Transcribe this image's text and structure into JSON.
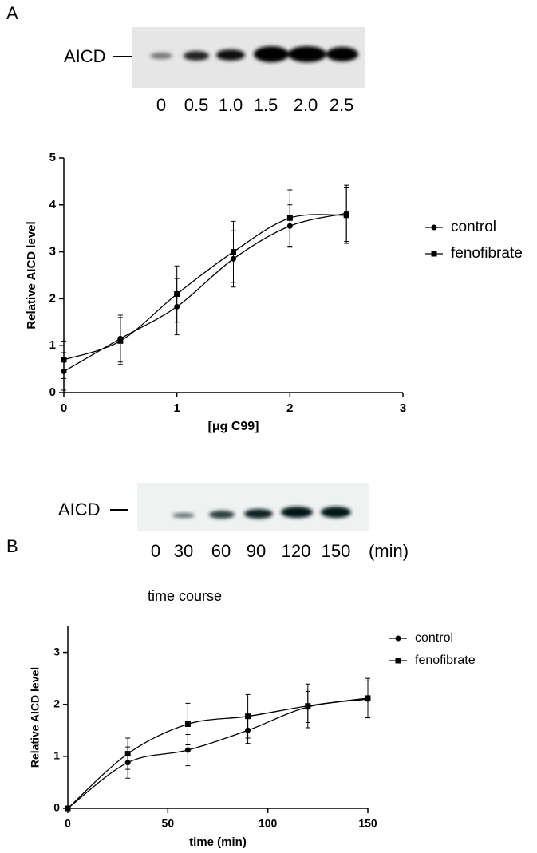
{
  "panel_a": {
    "label": "A",
    "blot_label": "AICD",
    "lanes": [
      "0",
      "0.5",
      "1.0",
      "1.5",
      "2.0",
      "2.5"
    ]
  },
  "panel_b": {
    "label": "B",
    "blot_label": "AICD",
    "lanes": [
      "0",
      "30",
      "60",
      "90",
      "120",
      "150"
    ],
    "unit": "(min)"
  },
  "chart_data": [
    {
      "type": "line",
      "x_label": "[μg C99]",
      "y_label": "Relative AICD level",
      "x": [
        0,
        0.5,
        1,
        1.5,
        2,
        2.5
      ],
      "xlim": [
        0,
        3
      ],
      "xticks": [
        0,
        1,
        2,
        3
      ],
      "ylim": [
        0,
        5
      ],
      "yticks": [
        0,
        1,
        2,
        3,
        4,
        5
      ],
      "legend": "right",
      "series": [
        {
          "name": "control",
          "color": "#000000",
          "marker": "circle",
          "values": [
            0.45,
            1.15,
            1.83,
            2.85,
            3.55,
            3.82
          ],
          "errors": [
            0.4,
            0.5,
            0.6,
            0.6,
            0.45,
            0.6
          ]
        },
        {
          "name": "fenofibrate",
          "color": "#000000",
          "marker": "square",
          "values": [
            0.7,
            1.1,
            2.1,
            3.0,
            3.72,
            3.78
          ],
          "errors": [
            0.4,
            0.5,
            0.6,
            0.65,
            0.6,
            0.6
          ]
        }
      ]
    },
    {
      "type": "line",
      "title": "time course",
      "x_label": "time (min)",
      "y_label": "Relative AICD level",
      "x": [
        0,
        30,
        60,
        90,
        120,
        150
      ],
      "xlim": [
        0,
        150
      ],
      "xticks": [
        0,
        50,
        100,
        150
      ],
      "ylim": [
        0,
        3.5
      ],
      "yticks": [
        0,
        1,
        2,
        3
      ],
      "legend": "right",
      "series": [
        {
          "name": "control",
          "color": "#000000",
          "marker": "circle",
          "values": [
            0,
            0.88,
            1.12,
            1.5,
            1.95,
            2.1
          ],
          "errors": [
            0,
            0.3,
            0.3,
            0.25,
            0.3,
            0.35
          ]
        },
        {
          "name": "fenofibrate",
          "color": "#000000",
          "marker": "square",
          "values": [
            0,
            1.05,
            1.62,
            1.77,
            1.97,
            2.12
          ],
          "errors": [
            0,
            0.3,
            0.4,
            0.42,
            0.42,
            0.38
          ]
        }
      ]
    }
  ]
}
